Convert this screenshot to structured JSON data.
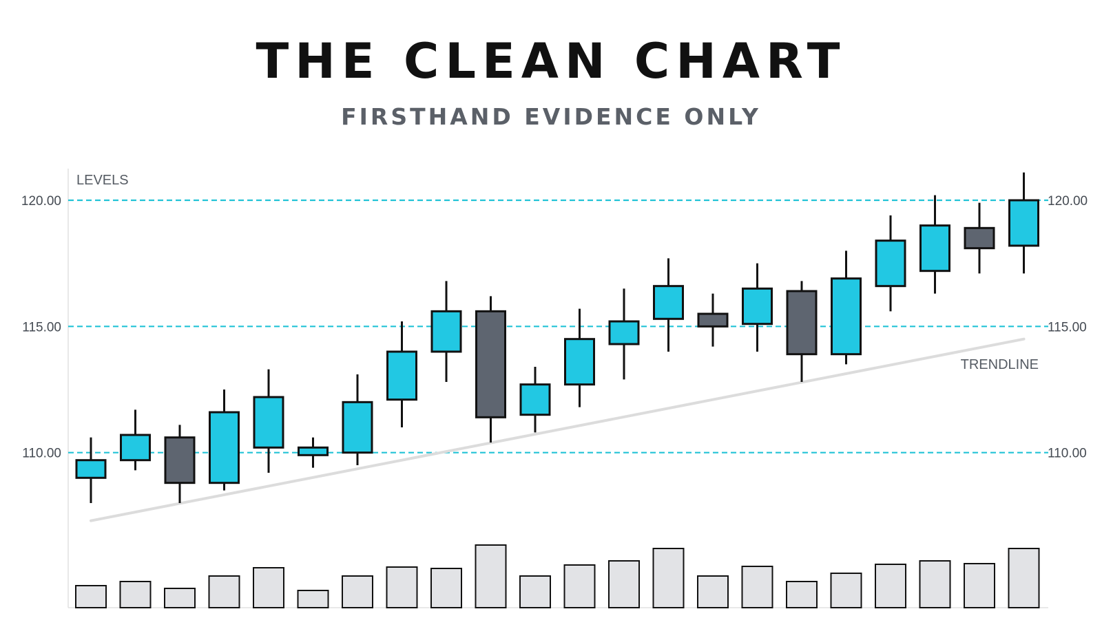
{
  "title": "THE CLEAN CHART",
  "subtitle": "FIRSTHAND EVIDENCE ONLY",
  "colors": {
    "up": "#22c8e3",
    "down": "#5e6570",
    "outline": "#111111",
    "level": "#22c3d6",
    "trendline": "#dcdcdc",
    "volume": "#e2e3e6",
    "axis": "#e0e0e0"
  },
  "chart_data": {
    "type": "candlestick",
    "title": "THE CLEAN CHART",
    "subtitle": "FIRSTHAND EVIDENCE ONLY",
    "ylim": [
      106.5,
      121.2
    ],
    "y_ticks": [
      110,
      115,
      120
    ],
    "y_tick_labels": [
      "110.00",
      "115.00",
      "120.00"
    ],
    "levels": [
      110,
      115,
      120
    ],
    "annotations": [
      "LEVELS",
      "TRENDLINE"
    ],
    "trendline": {
      "start": [
        1,
        107.3
      ],
      "end": [
        22,
        114.5
      ]
    },
    "candles": [
      {
        "open": 109.0,
        "high": 110.6,
        "low": 108.0,
        "close": 109.7
      },
      {
        "open": 109.7,
        "high": 111.7,
        "low": 109.3,
        "close": 110.7
      },
      {
        "open": 110.6,
        "high": 111.1,
        "low": 108.0,
        "close": 108.8
      },
      {
        "open": 108.8,
        "high": 112.5,
        "low": 108.5,
        "close": 111.6
      },
      {
        "open": 110.2,
        "high": 113.3,
        "low": 109.2,
        "close": 112.2
      },
      {
        "open": 109.9,
        "high": 110.6,
        "low": 109.4,
        "close": 110.2
      },
      {
        "open": 110.0,
        "high": 113.1,
        "low": 109.5,
        "close": 112.0
      },
      {
        "open": 112.1,
        "high": 115.2,
        "low": 111.0,
        "close": 114.0
      },
      {
        "open": 114.0,
        "high": 116.8,
        "low": 112.8,
        "close": 115.6
      },
      {
        "open": 115.6,
        "high": 116.2,
        "low": 110.4,
        "close": 111.4
      },
      {
        "open": 111.5,
        "high": 113.4,
        "low": 110.8,
        "close": 112.7
      },
      {
        "open": 112.7,
        "high": 115.7,
        "low": 111.8,
        "close": 114.5
      },
      {
        "open": 114.3,
        "high": 116.5,
        "low": 112.9,
        "close": 115.2
      },
      {
        "open": 115.3,
        "high": 117.7,
        "low": 114.0,
        "close": 116.6
      },
      {
        "open": 115.5,
        "high": 116.3,
        "low": 114.2,
        "close": 115.0
      },
      {
        "open": 115.1,
        "high": 117.5,
        "low": 114.0,
        "close": 116.5
      },
      {
        "open": 116.4,
        "high": 116.8,
        "low": 112.8,
        "close": 113.9
      },
      {
        "open": 113.9,
        "high": 118.0,
        "low": 113.5,
        "close": 116.9
      },
      {
        "open": 116.6,
        "high": 119.4,
        "low": 115.6,
        "close": 118.4
      },
      {
        "open": 117.2,
        "high": 120.2,
        "low": 116.3,
        "close": 119.0
      },
      {
        "open": 118.9,
        "high": 119.9,
        "low": 117.1,
        "close": 118.1
      },
      {
        "open": 118.2,
        "high": 121.1,
        "low": 117.1,
        "close": 120.0
      }
    ],
    "volume": [
      32,
      38,
      28,
      46,
      58,
      25,
      46,
      59,
      57,
      91,
      46,
      62,
      68,
      86,
      46,
      60,
      38,
      50,
      63,
      68,
      64,
      86
    ]
  }
}
